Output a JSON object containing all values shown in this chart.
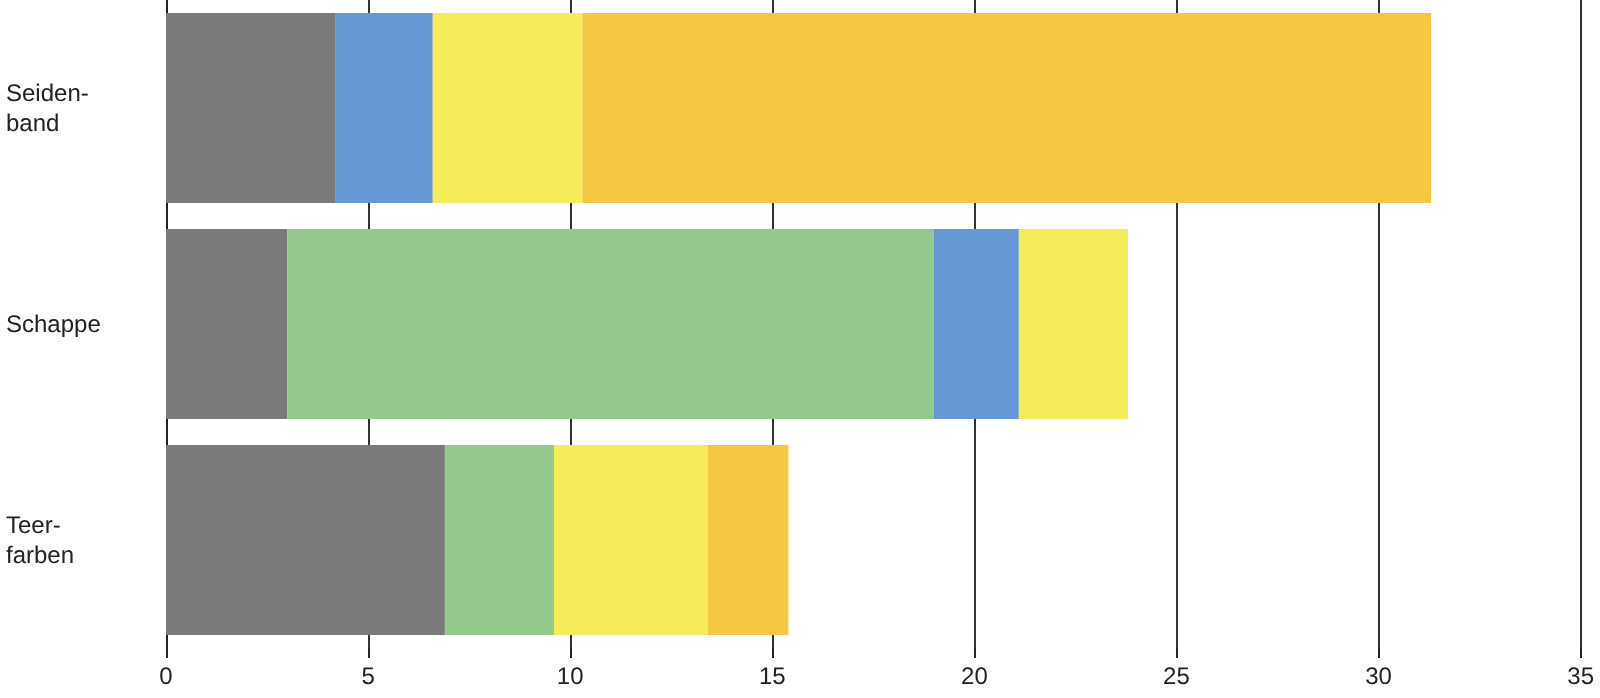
{
  "chart_data": {
    "type": "bar",
    "orientation": "horizontal",
    "stacked": true,
    "grid": "x",
    "categories": [
      "Seiden-\nband",
      "Schappe",
      "Teer-\nfarben"
    ],
    "xlim": [
      0,
      35
    ],
    "xticks": [
      0,
      5,
      10,
      15,
      20,
      25,
      30,
      35
    ],
    "series": [
      {
        "color": "#7a7a7a",
        "values": [
          4.2,
          3.0,
          6.9
        ]
      },
      {
        "color": "#93c98a",
        "values": [
          null,
          16.0,
          2.7
        ]
      },
      {
        "color": "#6497d4",
        "values": [
          2.4,
          2.1,
          null
        ]
      },
      {
        "color": "#f5ec5a",
        "values": [
          3.7,
          2.7,
          3.8
        ]
      },
      {
        "color": "#f5c842",
        "values": [
          21.0,
          null,
          2.0
        ]
      }
    ]
  }
}
